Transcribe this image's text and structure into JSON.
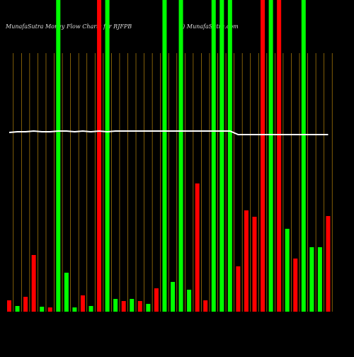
{
  "chart_data": {
    "type": "bar",
    "title": "MunafaSutra  Money Flow  Charts for RJFPB",
    "subtitle": "() MunafaSutra.com",
    "categories": [
      null,
      null,
      null,
      null,
      null,
      null,
      null,
      null,
      null,
      null,
      null,
      null,
      null,
      null,
      null,
      null,
      null,
      null,
      null,
      null,
      null,
      null,
      null,
      null,
      null,
      null,
      null,
      null,
      null,
      null,
      null,
      null,
      null,
      null,
      null,
      null,
      null,
      null,
      null,
      null
    ],
    "values": [
      16,
      8,
      21,
      80,
      7,
      6,
      440,
      55,
      6,
      23,
      8,
      440,
      440,
      18,
      15,
      18,
      15,
      11,
      33,
      440,
      42,
      440,
      31,
      181,
      16,
      440,
      440,
      440,
      64,
      143,
      134,
      440,
      440,
      440,
      117,
      75,
      440,
      91,
      91,
      135
    ],
    "colors": [
      "#ff0000",
      "#00ff00",
      "#ff0000",
      "#ff0000",
      "#00ff00",
      "#ff0000",
      "#00ff00",
      "#00ff00",
      "#00ff00",
      "#ff0000",
      "#00ff00",
      "#ff0000",
      "#00ff00",
      "#00ff00",
      "#ff0000",
      "#00ff00",
      "#ff0000",
      "#00ff00",
      "#ff0000",
      "#00ff00",
      "#00ff00",
      "#00ff00",
      "#00ff00",
      "#ff0000",
      "#ff0000",
      "#00ff00",
      "#00ff00",
      "#00ff00",
      "#ff0000",
      "#ff0000",
      "#ff0000",
      "#ff0000",
      "#00ff00",
      "#ff0000",
      "#00ff00",
      "#ff0000",
      "#00ff00",
      "#00ff00",
      "#00ff00",
      "#ff0000"
    ],
    "line": {
      "color": "#ffffff",
      "values": [
        253,
        254,
        254,
        255,
        254,
        254,
        255,
        255,
        254,
        255,
        254,
        255,
        254,
        255,
        255,
        255,
        255,
        255,
        255,
        255,
        255,
        255,
        255,
        255,
        255,
        255,
        255,
        255,
        250,
        250,
        250,
        250,
        250,
        250,
        250,
        250,
        250,
        250,
        250,
        250
      ]
    },
    "ylim": [
      0,
      440
    ],
    "grid": true,
    "grid_color": "#b8860b",
    "background": "#000000"
  }
}
